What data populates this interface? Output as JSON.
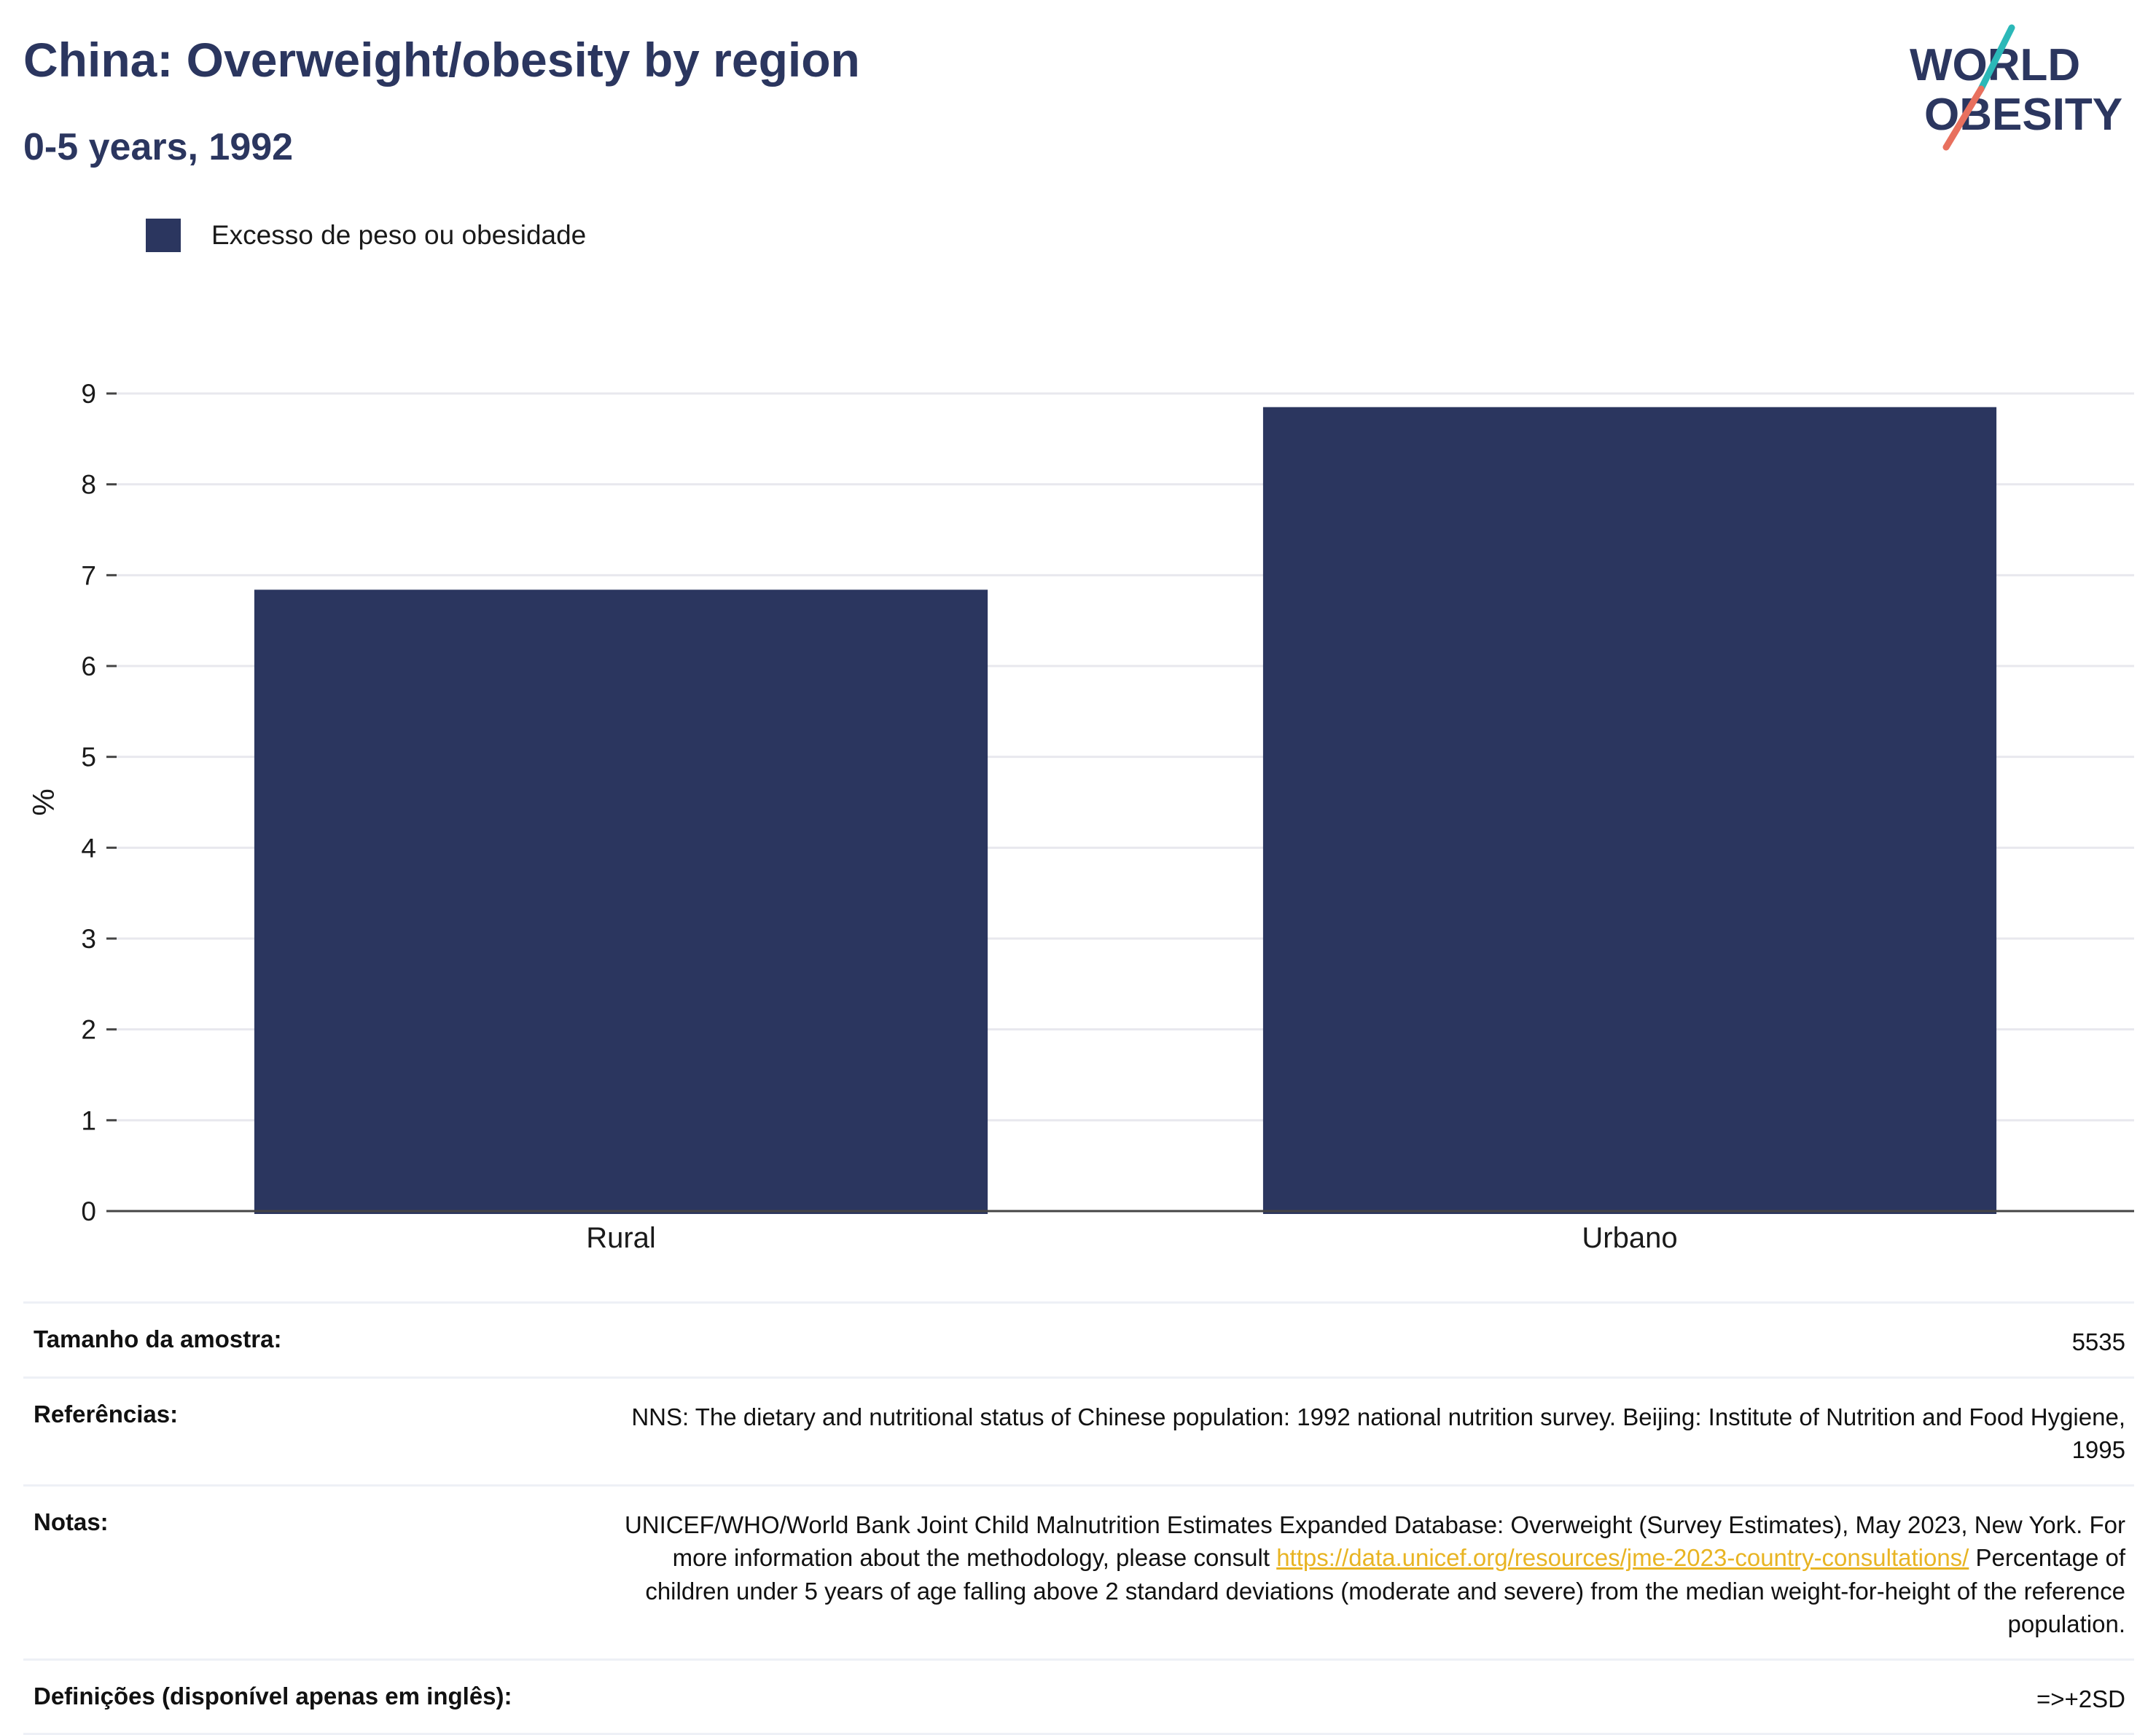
{
  "header": {
    "title": "China: Overweight/obesity by region",
    "subtitle": "0-5 years, 1992"
  },
  "logo": {
    "line1": "WORLD",
    "line2": "OBESITY",
    "color_text": "#2b365f",
    "color_teal": "#2bb8b8",
    "color_coral": "#e8705e"
  },
  "chart_data": {
    "type": "bar",
    "categories": [
      "Rural",
      "Urbano"
    ],
    "series": [
      {
        "name": "Excesso de peso ou obesidade",
        "values": [
          6.84,
          8.85
        ],
        "color": "#2b365f"
      }
    ],
    "ylabel": "%",
    "xlabel": "",
    "ylim": [
      0,
      9
    ],
    "yticks": [
      0,
      1,
      2,
      3,
      4,
      5,
      6,
      7,
      8,
      9
    ],
    "grid": true,
    "legend": "top-left"
  },
  "info": {
    "sample": {
      "label": "Tamanho da amostra:",
      "value": "5535"
    },
    "references": {
      "label": "Referências:",
      "value": "NNS: The dietary and nutritional status of Chinese population: 1992 national nutrition survey. Beijing: Institute of Nutrition and Food Hygiene, 1995"
    },
    "notes": {
      "label": "Notas:",
      "text1": "UNICEF/WHO/World Bank Joint Child Malnutrition Estimates Expanded Database: Overweight (Survey Estimates), May 2023, New York. For more information about the methodology, please consult",
      "link": "https://data.unicef.org/resources/jme-2023-country-consultations/",
      "text2": "Percentage of children under 5 years of age falling above 2 standard deviations (moderate and severe) from the median weight-for-height of the reference population."
    },
    "definitions": {
      "label": "Definições (disponível apenas em inglês):",
      "value": "=>+2SD"
    }
  }
}
